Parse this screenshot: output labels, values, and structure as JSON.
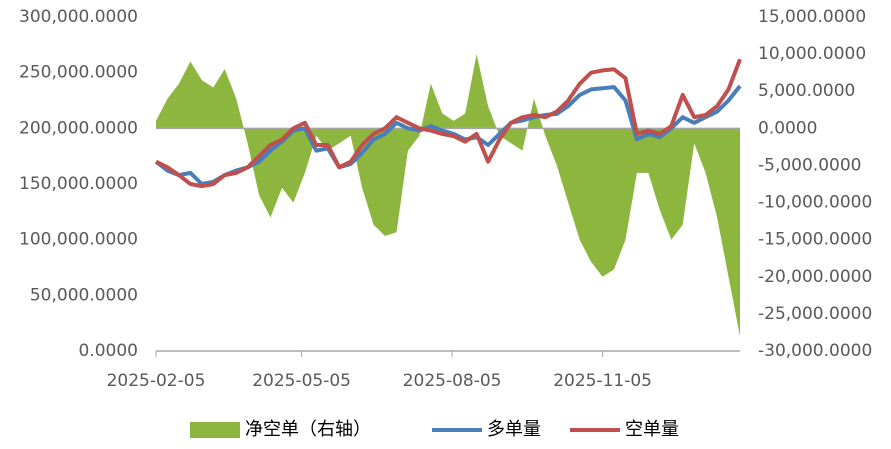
{
  "chart_data": {
    "type": "combo",
    "x": [
      "2025-02-05",
      "2025-02-12",
      "2025-02-19",
      "2025-02-26",
      "2025-03-05",
      "2025-03-12",
      "2025-03-19",
      "2025-03-26",
      "2025-04-02",
      "2025-04-09",
      "2025-04-16",
      "2025-04-23",
      "2025-04-30",
      "2025-05-07",
      "2025-05-14",
      "2025-05-21",
      "2025-05-28",
      "2025-06-04",
      "2025-06-11",
      "2025-06-18",
      "2025-06-25",
      "2025-07-02",
      "2025-07-09",
      "2025-07-16",
      "2025-07-23",
      "2025-07-30",
      "2025-08-06",
      "2025-08-13",
      "2025-08-20",
      "2025-08-27",
      "2025-09-03",
      "2025-09-10",
      "2025-09-17",
      "2025-09-24",
      "2025-10-01",
      "2025-10-08",
      "2025-10-15",
      "2025-10-22",
      "2025-10-29",
      "2025-11-05",
      "2025-11-12",
      "2025-11-19",
      "2025-11-26",
      "2025-12-03",
      "2025-12-10",
      "2025-12-17",
      "2025-12-24",
      "2025-12-31",
      "2026-01-07",
      "2026-01-14",
      "2026-01-21",
      "2026-01-28"
    ],
    "xlim": [
      "2025-02-05",
      "2026-01-28"
    ],
    "xticks": [
      "2025-02-05",
      "2025-05-05",
      "2025-08-05",
      "2025-11-05"
    ],
    "ylim": [
      0,
      300000
    ],
    "yticks": [
      {
        "value": 0,
        "label": "0.0000"
      },
      {
        "value": 50000,
        "label": "50,000.0000"
      },
      {
        "value": 100000,
        "label": "100,000.0000"
      },
      {
        "value": 150000,
        "label": "150,000.0000"
      },
      {
        "value": 200000,
        "label": "200,000.0000"
      },
      {
        "value": 250000,
        "label": "250,000.0000"
      },
      {
        "value": 300000,
        "label": "300,000.0000"
      }
    ],
    "y2lim": [
      -30000,
      15000
    ],
    "y2ticks": [
      {
        "value": -30000,
        "label": "-30,000.0000"
      },
      {
        "value": -25000,
        "label": "-25,000.0000"
      },
      {
        "value": -20000,
        "label": "-20,000.0000"
      },
      {
        "value": -15000,
        "label": "-15,000.0000"
      },
      {
        "value": -10000,
        "label": "-10,000.0000"
      },
      {
        "value": -5000,
        "label": "-5,000.0000"
      },
      {
        "value": 0,
        "label": "0.0000"
      },
      {
        "value": 5000,
        "label": "5,000.0000"
      },
      {
        "value": 10000,
        "label": "10,000.0000"
      },
      {
        "value": 15000,
        "label": "15,000.0000"
      }
    ],
    "series": [
      {
        "name": "净空单（右轴）",
        "kind": "area",
        "axis": "y2",
        "color": "#8db63f",
        "values": [
          1000,
          4000,
          6000,
          9000,
          6500,
          5500,
          8000,
          4000,
          -2000,
          -9000,
          -12000,
          -8000,
          -10000,
          -6000,
          -1000,
          -3000,
          -2000,
          -1000,
          -8000,
          -13000,
          -14500,
          -14000,
          -3000,
          -1000,
          6000,
          2000,
          1000,
          2000,
          10000,
          3000,
          -1000,
          -2000,
          -3000,
          4000,
          -1000,
          -5000,
          -10000,
          -15000,
          -18000,
          -20000,
          -19000,
          -15000,
          -6000,
          -6000,
          -11000,
          -15000,
          -13000,
          -2000,
          -6000,
          -12000,
          -20000,
          -28000
        ]
      },
      {
        "name": "多单量",
        "kind": "line",
        "color": "#4a7ebb",
        "values": [
          170000,
          162000,
          158000,
          160000,
          150000,
          152000,
          158000,
          162000,
          165000,
          170000,
          180000,
          188000,
          198000,
          200000,
          180000,
          182000,
          165000,
          168000,
          178000,
          190000,
          195000,
          205000,
          200000,
          198000,
          202000,
          198000,
          195000,
          190000,
          192000,
          185000,
          195000,
          205000,
          207000,
          210000,
          212000,
          213000,
          220000,
          230000,
          235000,
          236000,
          237000,
          225000,
          190000,
          195000,
          192000,
          200000,
          210000,
          205000,
          210000,
          215000,
          225000,
          238000
        ]
      },
      {
        "name": "空单量",
        "kind": "line",
        "color": "#c0504d",
        "values": [
          170000,
          165000,
          158000,
          150000,
          148000,
          150000,
          158000,
          160000,
          165000,
          175000,
          185000,
          190000,
          200000,
          205000,
          185000,
          185000,
          165000,
          170000,
          185000,
          195000,
          200000,
          210000,
          205000,
          200000,
          198000,
          195000,
          193000,
          188000,
          195000,
          170000,
          190000,
          205000,
          210000,
          212000,
          210000,
          215000,
          225000,
          240000,
          250000,
          252000,
          253000,
          245000,
          195000,
          198000,
          195000,
          202000,
          230000,
          210000,
          212000,
          220000,
          235000,
          262000
        ]
      }
    ]
  }
}
